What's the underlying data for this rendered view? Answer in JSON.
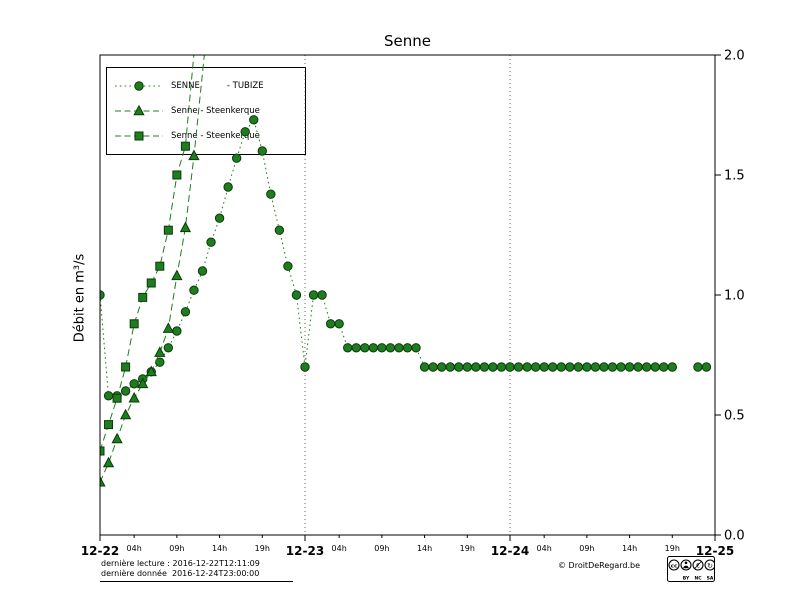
{
  "chart_data": {
    "type": "line",
    "title": "Senne",
    "ylabel": "Débit en m³/s",
    "xlim": [
      0,
      72
    ],
    "ylim": [
      0.0,
      2.0
    ],
    "y_ticks": [
      0.0,
      0.5,
      1.0,
      1.5,
      2.0
    ],
    "x_major_ticks": [
      {
        "pos": 0,
        "label": "12-22"
      },
      {
        "pos": 24,
        "label": "12-23"
      },
      {
        "pos": 48,
        "label": "12-24"
      },
      {
        "pos": 72,
        "label": "12-25"
      }
    ],
    "x_minor_days": [
      0,
      24,
      48
    ],
    "x_minor_ticks": [
      {
        "off": 4,
        "label": "04h"
      },
      {
        "off": 9,
        "label": "09h"
      },
      {
        "off": 14,
        "label": "14h"
      },
      {
        "off": 19,
        "label": "19h"
      }
    ],
    "grid_vertical_dotted_at": [
      24,
      48
    ],
    "legend_position": "upper-left",
    "marker_edge_color": "#0a3a0a",
    "series": [
      {
        "name": "SENNE          - TUBIZE",
        "marker": "circle",
        "linestyle": "dotted",
        "color": "#1f7d1f",
        "points": [
          [
            0,
            1.0
          ],
          [
            1,
            0.58
          ],
          [
            2,
            0.58
          ],
          [
            3,
            0.6
          ],
          [
            4,
            0.63
          ],
          [
            5,
            0.65
          ],
          [
            6,
            0.68
          ],
          [
            7,
            0.72
          ],
          [
            8,
            0.78
          ],
          [
            9,
            0.85
          ],
          [
            10,
            0.93
          ],
          [
            11,
            1.02
          ],
          [
            12,
            1.1
          ],
          [
            13,
            1.22
          ],
          [
            14,
            1.32
          ],
          [
            15,
            1.45
          ],
          [
            16,
            1.57
          ],
          [
            17,
            1.68
          ],
          [
            18,
            1.73
          ],
          [
            19,
            1.6
          ],
          [
            20,
            1.42
          ],
          [
            21,
            1.27
          ],
          [
            22,
            1.12
          ],
          [
            23,
            1.0
          ],
          [
            24,
            0.7
          ],
          [
            25,
            1.0
          ],
          [
            26,
            1.0
          ],
          [
            27,
            0.88
          ],
          [
            28,
            0.88
          ],
          [
            29,
            0.78
          ],
          [
            30,
            0.78
          ],
          [
            31,
            0.78
          ],
          [
            32,
            0.78
          ],
          [
            33,
            0.78
          ],
          [
            34,
            0.78
          ],
          [
            35,
            0.78
          ],
          [
            36,
            0.78
          ],
          [
            37,
            0.78
          ],
          [
            38,
            0.7
          ],
          [
            39,
            0.7
          ],
          [
            40,
            0.7
          ],
          [
            41,
            0.7
          ],
          [
            42,
            0.7
          ],
          [
            43,
            0.7
          ],
          [
            44,
            0.7
          ],
          [
            45,
            0.7
          ],
          [
            46,
            0.7
          ],
          [
            47,
            0.7
          ],
          [
            48,
            0.7
          ],
          [
            49,
            0.7
          ],
          [
            50,
            0.7
          ],
          [
            51,
            0.7
          ],
          [
            52,
            0.7
          ],
          [
            53,
            0.7
          ],
          [
            54,
            0.7
          ],
          [
            55,
            0.7
          ],
          [
            56,
            0.7
          ],
          [
            57,
            0.7
          ],
          [
            58,
            0.7
          ],
          [
            59,
            0.7
          ],
          [
            60,
            0.7
          ],
          [
            61,
            0.7
          ],
          [
            62,
            0.7
          ],
          [
            63,
            0.7
          ],
          [
            64,
            0.7
          ],
          [
            65,
            0.7
          ],
          [
            66,
            0.7
          ],
          [
            67,
            0.7
          ],
          [
            70,
            0.7
          ],
          [
            71,
            0.7
          ]
        ]
      },
      {
        "name": "Senne - Steenkerque",
        "marker": "triangle",
        "linestyle": "dashed",
        "color": "#1f7d1f",
        "points": [
          [
            0,
            0.22
          ],
          [
            1,
            0.3
          ],
          [
            2,
            0.4
          ],
          [
            3,
            0.5
          ],
          [
            4,
            0.57
          ],
          [
            5,
            0.63
          ],
          [
            6,
            0.68
          ],
          [
            7,
            0.76
          ],
          [
            8,
            0.86
          ],
          [
            9,
            1.08
          ],
          [
            10,
            1.28
          ],
          [
            11,
            1.58
          ],
          [
            12.5,
            2.1
          ]
        ]
      },
      {
        "name": "Senne - Steenkerque",
        "marker": "square",
        "linestyle": "dashed",
        "color": "#1f7d1f",
        "points": [
          [
            0,
            0.35
          ],
          [
            1,
            0.46
          ],
          [
            2,
            0.57
          ],
          [
            3,
            0.7
          ],
          [
            4,
            0.88
          ],
          [
            5,
            0.99
          ],
          [
            6,
            1.05
          ],
          [
            7,
            1.12
          ],
          [
            8,
            1.27
          ],
          [
            9,
            1.5
          ],
          [
            10,
            1.62
          ],
          [
            11.3,
            2.12
          ]
        ]
      }
    ]
  },
  "footer": {
    "line1": "dernière lecture : 2016-12-22T12:11:09",
    "line2": "dernière donnée  2016-12-24T23:00:00",
    "copyright": "© DroitDeRegard.be",
    "cc_labels": [
      "BY",
      "NC",
      "SA"
    ]
  }
}
